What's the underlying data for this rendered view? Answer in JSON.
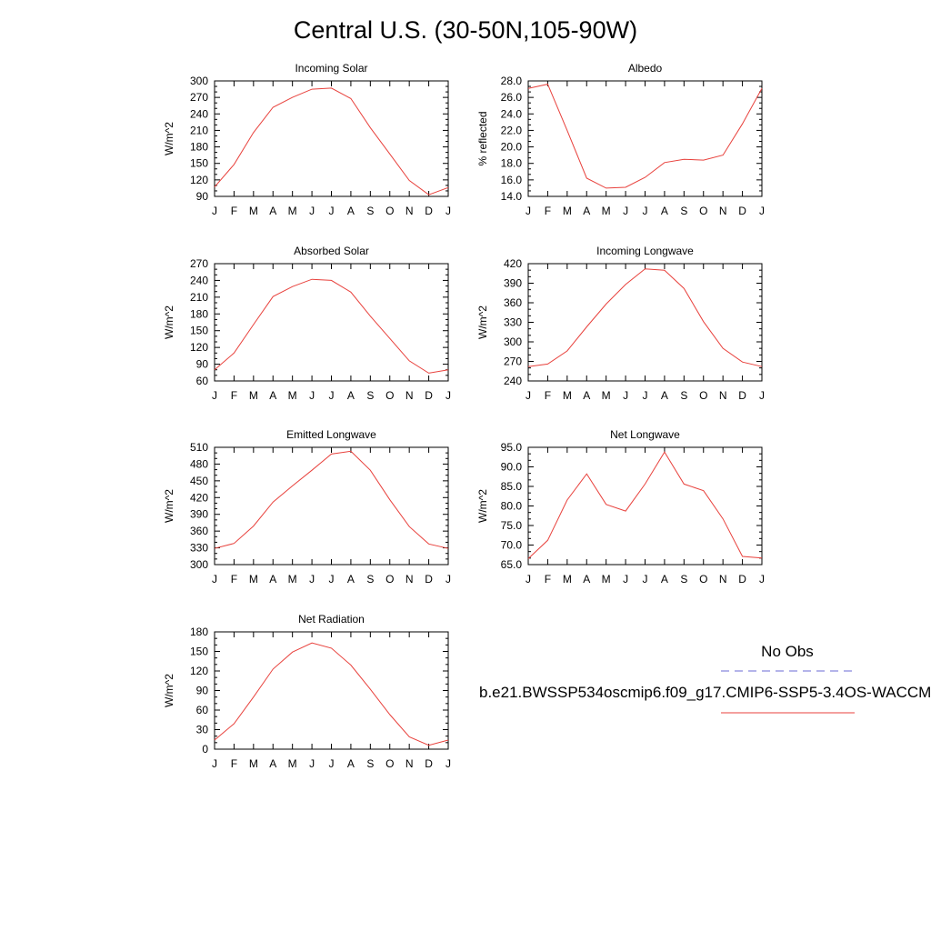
{
  "page": {
    "title": "Central U.S. (30-50N,105-90W)"
  },
  "legend": {
    "obs_label": "No Obs",
    "obs_color": "#6a6ad6",
    "model_label": "b.e21.BWSSP534oscmip6.f09_g17.CMIP6-SSP5-3.4OS-WACCM",
    "model_color": "#e8413c",
    "placement": "right-of-last-panel"
  },
  "chart_data": [
    {
      "type": "line",
      "title": "Incoming Solar",
      "ylabel": "W/m^2",
      "categories": [
        "J",
        "F",
        "M",
        "A",
        "M",
        "J",
        "J",
        "A",
        "S",
        "O",
        "N",
        "D",
        "J"
      ],
      "ylim": [
        90,
        300
      ],
      "yticks": [
        90,
        120,
        150,
        180,
        210,
        240,
        270,
        300
      ],
      "ytick_labels": [
        "90",
        "120",
        "150",
        "180",
        "210",
        "240",
        "270",
        "300"
      ],
      "series": [
        {
          "values": [
            107,
            148,
            206,
            252,
            270,
            285,
            287,
            268,
            215,
            167,
            119,
            93,
            106
          ]
        }
      ]
    },
    {
      "type": "line",
      "title": "Albedo",
      "ylabel": "% reflected",
      "categories": [
        "J",
        "F",
        "M",
        "A",
        "M",
        "J",
        "J",
        "A",
        "S",
        "O",
        "N",
        "D",
        "J"
      ],
      "ylim": [
        14,
        28
      ],
      "yticks": [
        14,
        16,
        18,
        20,
        22,
        24,
        26,
        28
      ],
      "ytick_labels": [
        "14.0",
        "16.0",
        "18.0",
        "20.0",
        "22.0",
        "24.0",
        "26.0",
        "28.0"
      ],
      "series": [
        {
          "values": [
            27.1,
            27.6,
            22.0,
            16.2,
            15.0,
            15.1,
            16.3,
            18.1,
            18.5,
            18.4,
            19.0,
            22.8,
            27.1
          ]
        }
      ]
    },
    {
      "type": "line",
      "title": "Absorbed Solar",
      "ylabel": "W/m^2",
      "categories": [
        "J",
        "F",
        "M",
        "A",
        "M",
        "J",
        "J",
        "A",
        "S",
        "O",
        "N",
        "D",
        "J"
      ],
      "ylim": [
        60,
        270
      ],
      "yticks": [
        60,
        90,
        120,
        150,
        180,
        210,
        240,
        270
      ],
      "ytick_labels": [
        "60",
        "90",
        "120",
        "150",
        "180",
        "210",
        "240",
        "270"
      ],
      "series": [
        {
          "values": [
            80,
            110,
            161,
            211,
            229,
            242,
            240,
            219,
            176,
            136,
            96,
            74,
            80
          ]
        }
      ]
    },
    {
      "type": "line",
      "title": "Incoming Longwave",
      "ylabel": "W/m^2",
      "categories": [
        "J",
        "F",
        "M",
        "A",
        "M",
        "J",
        "J",
        "A",
        "S",
        "O",
        "N",
        "D",
        "J"
      ],
      "ylim": [
        240,
        420
      ],
      "yticks": [
        240,
        270,
        300,
        330,
        360,
        390,
        420
      ],
      "ytick_labels": [
        "240",
        "270",
        "300",
        "330",
        "360",
        "390",
        "420"
      ],
      "series": [
        {
          "values": [
            262,
            266,
            286,
            323,
            358,
            388,
            412,
            410,
            382,
            331,
            290,
            269,
            262
          ]
        }
      ]
    },
    {
      "type": "line",
      "title": "Emitted Longwave",
      "ylabel": "W/m^2",
      "categories": [
        "J",
        "F",
        "M",
        "A",
        "M",
        "J",
        "J",
        "A",
        "S",
        "O",
        "N",
        "D",
        "J"
      ],
      "ylim": [
        300,
        510
      ],
      "yticks": [
        300,
        330,
        360,
        390,
        420,
        450,
        480,
        510
      ],
      "ytick_labels": [
        "300",
        "330",
        "360",
        "390",
        "420",
        "450",
        "480",
        "510"
      ],
      "series": [
        {
          "values": [
            329,
            338,
            369,
            412,
            441,
            469,
            498,
            503,
            469,
            416,
            368,
            337,
            329
          ]
        }
      ]
    },
    {
      "type": "line",
      "title": "Net Longwave",
      "ylabel": "W/m^2",
      "categories": [
        "J",
        "F",
        "M",
        "A",
        "M",
        "J",
        "J",
        "A",
        "S",
        "O",
        "N",
        "D",
        "J"
      ],
      "ylim": [
        65,
        95
      ],
      "yticks": [
        65,
        70,
        75,
        80,
        85,
        90,
        95
      ],
      "ytick_labels": [
        "65.0",
        "70.0",
        "75.0",
        "80.0",
        "85.0",
        "90.0",
        "95.0"
      ],
      "series": [
        {
          "values": [
            66.5,
            71.2,
            81.5,
            88.2,
            80.4,
            78.7,
            85.6,
            93.8,
            85.6,
            83.9,
            76.7,
            67.1,
            66.7
          ]
        }
      ]
    },
    {
      "type": "line",
      "title": "Net Radiation",
      "ylabel": "W/m^2",
      "categories": [
        "J",
        "F",
        "M",
        "A",
        "M",
        "J",
        "J",
        "A",
        "S",
        "O",
        "N",
        "D",
        "J"
      ],
      "ylim": [
        0,
        180
      ],
      "yticks": [
        0,
        30,
        60,
        90,
        120,
        150,
        180
      ],
      "ytick_labels": [
        "0",
        "30",
        "60",
        "90",
        "120",
        "150",
        "180"
      ],
      "series": [
        {
          "values": [
            14,
            39,
            80,
            123,
            149,
            163,
            155,
            129,
            92,
            53,
            19,
            6,
            14
          ]
        }
      ]
    }
  ]
}
